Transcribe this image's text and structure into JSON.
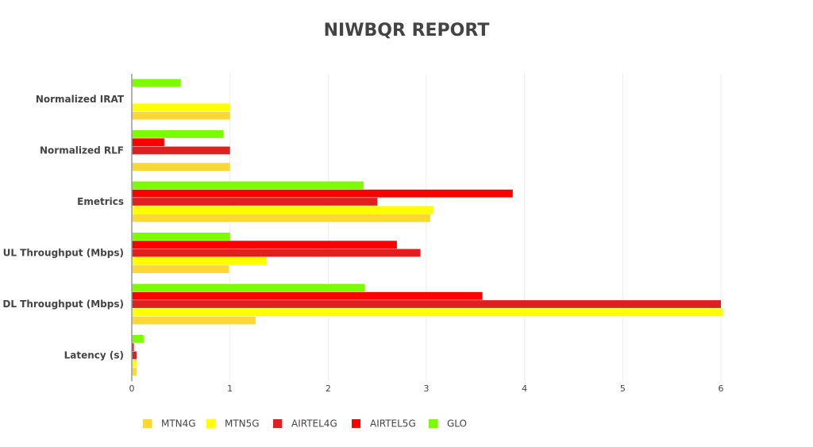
{
  "chart_data": {
    "type": "bar",
    "orientation": "horizontal",
    "title": "NIWBQR REPORT",
    "categories": [
      "Normalized IRAT",
      "Normalized RLF",
      "Emetrics",
      "UL Throughput (Mbps)",
      "DL Throughput (Mbps)",
      "Latency (s)"
    ],
    "series": [
      {
        "name": "MTN4G",
        "color": "#fdd835",
        "values": [
          1,
          1,
          3.04,
          0.99,
          1.26,
          0.05
        ]
      },
      {
        "name": "MTN5G",
        "color": "#ffff00",
        "values": [
          1,
          0,
          3.07,
          1.37,
          6.02,
          0.05
        ]
      },
      {
        "name": "AIRTEL4G",
        "color": "#e02020",
        "values": [
          0,
          1,
          2.5,
          2.94,
          6,
          0.05
        ]
      },
      {
        "name": "AIRTEL5G",
        "color": "#ff0000",
        "values": [
          0,
          0.33,
          3.88,
          2.7,
          3.57,
          0.02
        ]
      },
      {
        "name": "GLO",
        "color": "#7cfc00",
        "values": [
          0.5,
          0.93,
          2.36,
          1,
          2.37,
          0.12
        ]
      }
    ],
    "xlim": [
      0,
      6
    ],
    "xticks": [
      0,
      1,
      2,
      3,
      4,
      5,
      6
    ],
    "grid": true,
    "legend": "bottom"
  }
}
